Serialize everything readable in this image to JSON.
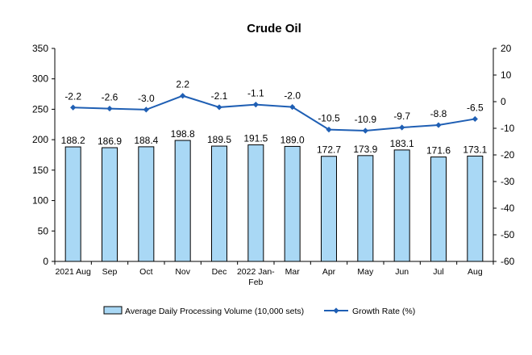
{
  "chart_data": {
    "type": "bar+line",
    "title": "Crude Oil",
    "categories": [
      "2021 Aug",
      "Sep",
      "Oct",
      "Nov",
      "Dec",
      "2022 Jan-Feb",
      "Mar",
      "Apr",
      "May",
      "Jun",
      "Jul",
      "Aug"
    ],
    "series": [
      {
        "name": "Average Daily Processing Volume (10,000 sets)",
        "type": "bar",
        "axis": "left",
        "values": [
          188.2,
          186.9,
          188.4,
          198.8,
          189.5,
          191.5,
          189.0,
          172.7,
          173.9,
          183.1,
          171.6,
          173.1
        ],
        "labels": [
          "188.2",
          "186.9",
          "188.4",
          "198.8",
          "189.5",
          "191.5",
          "189.0",
          "172.7",
          "173.9",
          "183.1",
          "171.6",
          "173.1"
        ]
      },
      {
        "name": "Growth Rate (%)",
        "type": "line",
        "axis": "right",
        "values": [
          -2.2,
          -2.6,
          -3.0,
          2.2,
          -2.1,
          -1.1,
          -2.0,
          -10.5,
          -10.9,
          -9.7,
          -8.8,
          -6.5
        ],
        "labels": [
          "-2.2",
          "-2.6",
          "-3.0",
          "2.2",
          "-2.1",
          "-1.1",
          "-2.0",
          "-10.5",
          "-10.9",
          "-9.7",
          "-8.8",
          "-6.5"
        ]
      }
    ],
    "y_left": {
      "min": 0,
      "max": 350,
      "step": 50,
      "ticks": [
        "0",
        "50",
        "100",
        "150",
        "200",
        "250",
        "300",
        "350"
      ]
    },
    "y_right": {
      "min": -60,
      "max": 20,
      "step": 10,
      "ticks": [
        "-60",
        "-50",
        "-40",
        "-30",
        "-20",
        "-10",
        "0",
        "10",
        "20"
      ]
    },
    "grid": false,
    "legend_position": "bottom",
    "colors": {
      "bar_fill": "#a9d8f5",
      "bar_stroke": "#000000",
      "line": "#1f5fb4",
      "axis": "#000000"
    }
  }
}
